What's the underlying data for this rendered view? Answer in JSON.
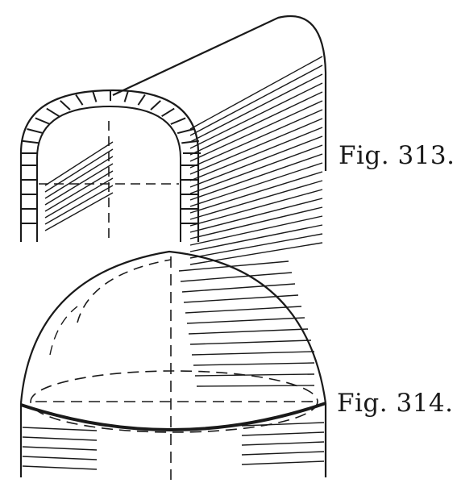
{
  "figures": [
    {
      "caption": "Fig. 313."
    },
    {
      "caption": "Fig. 314."
    }
  ],
  "colors": {
    "ink": "#1a1a1a",
    "paper": "#ffffff"
  }
}
